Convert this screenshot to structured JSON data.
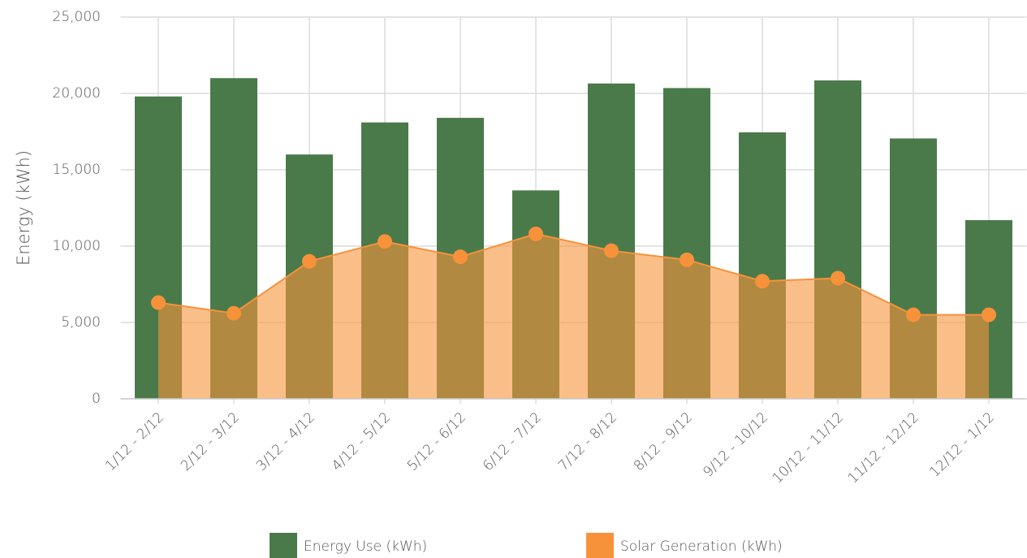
{
  "chart_data": {
    "type": "bar_area",
    "y_label": "Energy (kWh)",
    "categories": [
      "1/12 - 2/12",
      "2/12 - 3/12",
      "3/12 - 4/12",
      "4/12 - 5/12",
      "5/12 - 6/12",
      "6/12 - 7/12",
      "7/12 - 8/12",
      "8/12 - 9/12",
      "9/12 - 10/12",
      "10/12 - 11/12",
      "11/12 - 12/12",
      "12/12 - 1/12"
    ],
    "series": [
      {
        "name": "Energy Use (kWh)",
        "type": "bar",
        "color": "#4a7a4a",
        "values": [
          19800,
          21000,
          16000,
          18100,
          18400,
          13650,
          20650,
          20350,
          17450,
          20850,
          17050,
          11700
        ]
      },
      {
        "name": "Solar Generation (kWh)",
        "type": "area",
        "color": "#f7923a",
        "values": [
          6300,
          5600,
          9000,
          10300,
          9300,
          10800,
          9700,
          9100,
          7700,
          7900,
          5500,
          5500
        ]
      }
    ],
    "ylim": [
      0,
      25000
    ],
    "yticks": [
      0,
      {
        "value": 5000,
        "label": "5,000"
      },
      {
        "value": 10000,
        "label": "10,000"
      },
      {
        "value": 15000,
        "label": "15,000"
      },
      {
        "value": 20000,
        "label": "20,000"
      },
      {
        "value": 25000,
        "label": "25,000"
      }
    ],
    "grid": true,
    "legend": "bottom"
  }
}
